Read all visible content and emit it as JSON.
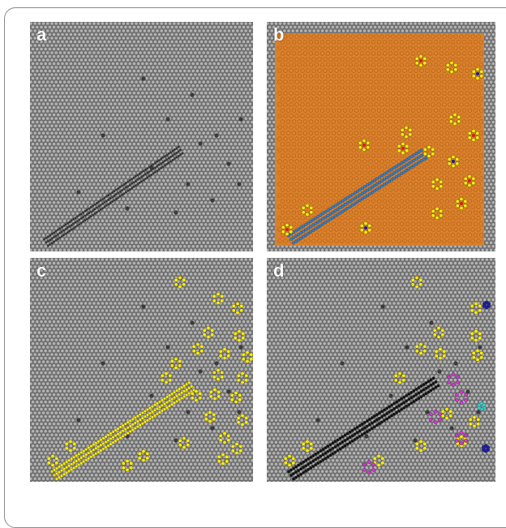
{
  "figure": {
    "panels": [
      {
        "id": "a",
        "label": "a",
        "overlay": "none"
      },
      {
        "id": "b",
        "label": "b",
        "overlay": "classified"
      },
      {
        "id": "c",
        "label": "c",
        "overlay": "defects-yellow"
      },
      {
        "id": "d",
        "label": "d",
        "overlay": "defects-typed"
      }
    ],
    "colors": {
      "lattice_bg": "#6e6e6e",
      "lattice_atom": "#b4b4b4",
      "orange_ring": "#e07f24",
      "blue_ring": "#2f7fd0",
      "yellow": "#ffee00",
      "red": "#d61f1f",
      "magenta": "#d633d6",
      "black": "#111111",
      "cyan": "#35d0d0",
      "navy": "#1b1ba8"
    }
  }
}
